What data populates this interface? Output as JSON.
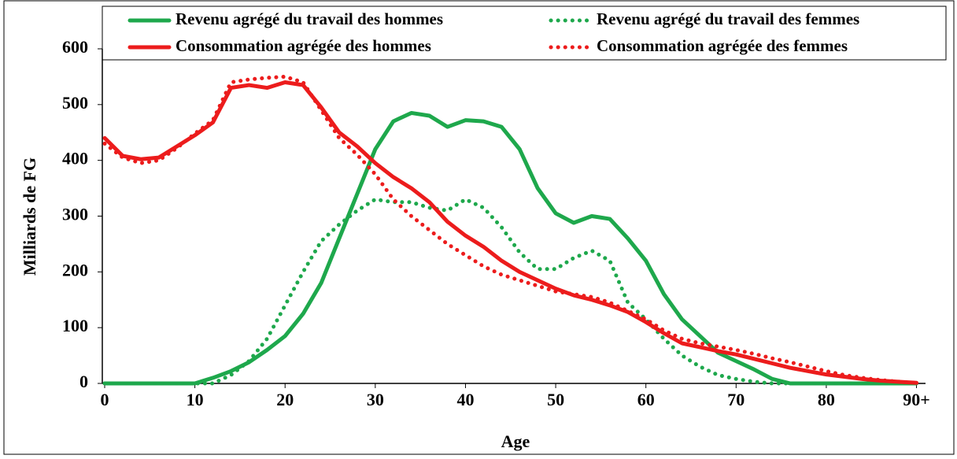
{
  "chart_data": {
    "type": "line",
    "x": [
      0,
      2,
      4,
      6,
      8,
      10,
      12,
      14,
      16,
      18,
      20,
      22,
      24,
      26,
      28,
      30,
      32,
      34,
      36,
      38,
      40,
      42,
      44,
      46,
      48,
      50,
      52,
      54,
      56,
      58,
      60,
      62,
      64,
      66,
      68,
      70,
      72,
      74,
      76,
      78,
      80,
      82,
      84,
      86,
      88,
      90
    ],
    "series": [
      {
        "name": "Revenu agrégé du travail des hommes",
        "color": "#1ea84c",
        "style": "solid",
        "values": [
          0,
          0,
          0,
          0,
          0,
          0,
          10,
          22,
          38,
          60,
          85,
          125,
          180,
          260,
          340,
          420,
          470,
          485,
          480,
          460,
          472,
          470,
          460,
          420,
          350,
          305,
          288,
          300,
          295,
          260,
          220,
          160,
          115,
          85,
          55,
          40,
          25,
          8,
          0,
          0,
          0,
          0,
          0,
          0,
          0,
          0
        ]
      },
      {
        "name": "Revenu agrégé du travail des femmes",
        "color": "#1ea84c",
        "style": "dotted",
        "values": [
          0,
          0,
          0,
          0,
          0,
          0,
          0,
          15,
          40,
          80,
          140,
          200,
          255,
          285,
          310,
          330,
          325,
          325,
          315,
          310,
          330,
          315,
          280,
          235,
          205,
          205,
          225,
          238,
          220,
          145,
          115,
          80,
          50,
          30,
          15,
          8,
          3,
          0,
          0,
          0,
          0,
          0,
          0,
          0,
          0,
          0
        ]
      },
      {
        "name": "Consommation agrégée des hommes",
        "color": "#ec1c1c",
        "style": "solid",
        "values": [
          440,
          408,
          402,
          405,
          425,
          445,
          468,
          530,
          535,
          530,
          540,
          535,
          495,
          450,
          425,
          395,
          370,
          350,
          325,
          290,
          265,
          245,
          220,
          200,
          185,
          170,
          158,
          150,
          140,
          128,
          110,
          90,
          72,
          65,
          58,
          52,
          44,
          36,
          28,
          22,
          16,
          12,
          8,
          5,
          3,
          1
        ]
      },
      {
        "name": "Consommation agrégée des femmes",
        "color": "#ec1c1c",
        "style": "dotted",
        "values": [
          430,
          405,
          395,
          400,
          422,
          448,
          472,
          540,
          545,
          548,
          550,
          540,
          490,
          440,
          410,
          375,
          330,
          300,
          275,
          250,
          230,
          210,
          195,
          185,
          175,
          165,
          160,
          155,
          145,
          130,
          115,
          95,
          80,
          72,
          66,
          60,
          53,
          45,
          38,
          30,
          22,
          15,
          10,
          6,
          3,
          1
        ]
      }
    ],
    "xlabel": "Age",
    "ylabel": "Milliards de FG",
    "xlim": [
      0,
      91
    ],
    "ylim": [
      0,
      600
    ],
    "xticks": [
      0,
      10,
      20,
      30,
      40,
      50,
      60,
      70,
      80,
      {
        "value": 90,
        "label": "90+"
      }
    ],
    "yticks": [
      0,
      100,
      200,
      300,
      400,
      500,
      600
    ]
  }
}
